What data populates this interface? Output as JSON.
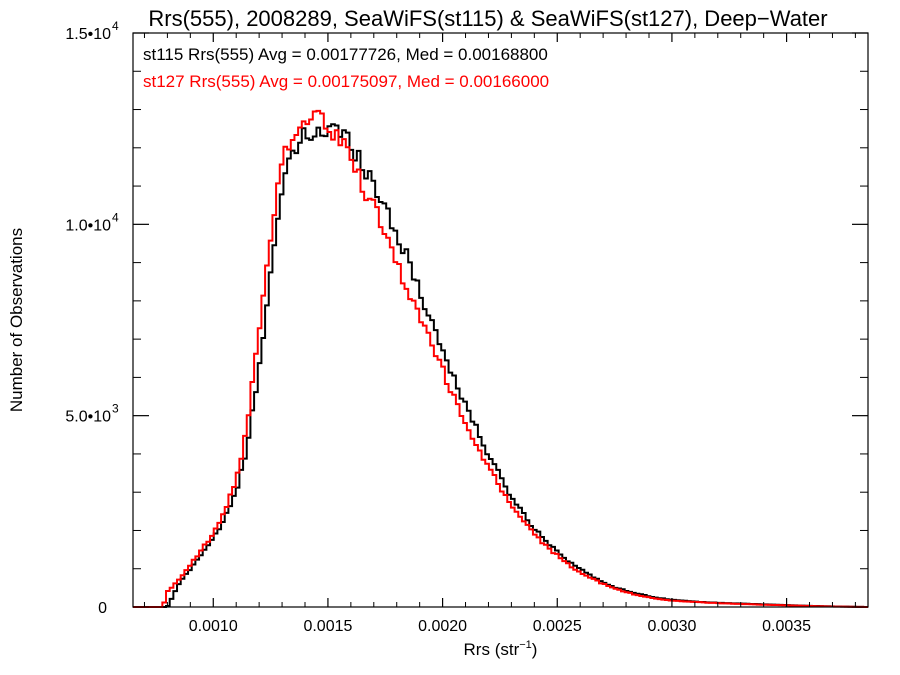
{
  "chart_data": {
    "type": "histogram",
    "title": "Rrs(555), 2008289, SeaWiFS(st115) & SeaWiFS(st127), Deep−Water",
    "xlabel_base": "Rrs (str",
    "xlabel_sup": "−1",
    "xlabel_close": ")",
    "ylabel": "Number of Observations",
    "xlim": [
      0.00065,
      0.003855
    ],
    "ylim": [
      0,
      15000
    ],
    "x_ticks": [
      {
        "value": 0.001,
        "label": "0.0010"
      },
      {
        "value": 0.0015,
        "label": "0.0015"
      },
      {
        "value": 0.002,
        "label": "0.0020"
      },
      {
        "value": 0.0025,
        "label": "0.0025"
      },
      {
        "value": 0.003,
        "label": "0.0030"
      },
      {
        "value": 0.0035,
        "label": "0.0035"
      }
    ],
    "y_ticks": [
      {
        "value": 0,
        "base": "0",
        "sup": ""
      },
      {
        "value": 5000,
        "base": "5.0•10",
        "sup": "3"
      },
      {
        "value": 10000,
        "base": "1.0•10",
        "sup": "4"
      },
      {
        "value": 15000,
        "base": "1.5•10",
        "sup": "4"
      }
    ],
    "bin_width": 1.6e-05,
    "series": [
      {
        "name": "st115",
        "color": "#000000",
        "legend": "st115 Rrs(555) Avg = 0.00177726, Med = 0.00168800",
        "points": [
          [
            0.00065,
            0
          ],
          [
            0.0008,
            0
          ],
          [
            0.00085,
            600
          ],
          [
            0.0009,
            1000
          ],
          [
            0.00095,
            1400
          ],
          [
            0.001,
            1800
          ],
          [
            0.00105,
            2300
          ],
          [
            0.0011,
            3000
          ],
          [
            0.00115,
            4200
          ],
          [
            0.0012,
            6300
          ],
          [
            0.00125,
            8800
          ],
          [
            0.0013,
            10800
          ],
          [
            0.00135,
            11900
          ],
          [
            0.0014,
            12300
          ],
          [
            0.00145,
            12400
          ],
          [
            0.0015,
            12500
          ],
          [
            0.00155,
            12400
          ],
          [
            0.0016,
            12100
          ],
          [
            0.00165,
            11700
          ],
          [
            0.0017,
            11000
          ],
          [
            0.00175,
            10500
          ],
          [
            0.0018,
            9800
          ],
          [
            0.00185,
            9000
          ],
          [
            0.0019,
            8300
          ],
          [
            0.00195,
            7500
          ],
          [
            0.002,
            6700
          ],
          [
            0.00205,
            6000
          ],
          [
            0.0021,
            5300
          ],
          [
            0.00215,
            4600
          ],
          [
            0.0022,
            4000
          ],
          [
            0.00225,
            3400
          ],
          [
            0.0023,
            2900
          ],
          [
            0.00235,
            2450
          ],
          [
            0.0024,
            2050
          ],
          [
            0.00245,
            1750
          ],
          [
            0.0025,
            1450
          ],
          [
            0.00255,
            1200
          ],
          [
            0.0026,
            1000
          ],
          [
            0.00265,
            800
          ],
          [
            0.0027,
            650
          ],
          [
            0.00275,
            520
          ],
          [
            0.0028,
            430
          ],
          [
            0.00285,
            350
          ],
          [
            0.0029,
            280
          ],
          [
            0.00295,
            230
          ],
          [
            0.003,
            190
          ],
          [
            0.0031,
            140
          ],
          [
            0.0032,
            110
          ],
          [
            0.0033,
            90
          ],
          [
            0.0034,
            70
          ],
          [
            0.0035,
            50
          ],
          [
            0.0036,
            30
          ],
          [
            0.0037,
            15
          ],
          [
            0.0038,
            5
          ],
          [
            0.003855,
            0
          ]
        ]
      },
      {
        "name": "st127",
        "color": "#ff0000",
        "legend": "st127 Rrs(555) Avg = 0.00175097, Med = 0.00166000",
        "points": [
          [
            0.00065,
            0
          ],
          [
            0.00078,
            0
          ],
          [
            0.0008,
            400
          ],
          [
            0.00085,
            700
          ],
          [
            0.0009,
            1100
          ],
          [
            0.00095,
            1500
          ],
          [
            0.001,
            1900
          ],
          [
            0.00105,
            2500
          ],
          [
            0.0011,
            3300
          ],
          [
            0.00115,
            4800
          ],
          [
            0.0012,
            7200
          ],
          [
            0.00125,
            9800
          ],
          [
            0.0013,
            11600
          ],
          [
            0.00135,
            12400
          ],
          [
            0.0014,
            12700
          ],
          [
            0.00145,
            12800
          ],
          [
            0.0015,
            12600
          ],
          [
            0.00155,
            12200
          ],
          [
            0.0016,
            11700
          ],
          [
            0.00165,
            11100
          ],
          [
            0.0017,
            10400
          ],
          [
            0.00175,
            9700
          ],
          [
            0.0018,
            9000
          ],
          [
            0.00185,
            8300
          ],
          [
            0.0019,
            7600
          ],
          [
            0.00195,
            6900
          ],
          [
            0.002,
            6200
          ],
          [
            0.00205,
            5500
          ],
          [
            0.0021,
            4800
          ],
          [
            0.00215,
            4200
          ],
          [
            0.0022,
            3700
          ],
          [
            0.00225,
            3100
          ],
          [
            0.0023,
            2700
          ],
          [
            0.00235,
            2250
          ],
          [
            0.0024,
            1900
          ],
          [
            0.00245,
            1600
          ],
          [
            0.0025,
            1350
          ],
          [
            0.00255,
            1100
          ],
          [
            0.0026,
            900
          ],
          [
            0.00265,
            750
          ],
          [
            0.0027,
            600
          ],
          [
            0.00275,
            480
          ],
          [
            0.0028,
            390
          ],
          [
            0.00285,
            310
          ],
          [
            0.0029,
            250
          ],
          [
            0.00295,
            200
          ],
          [
            0.003,
            170
          ],
          [
            0.0031,
            130
          ],
          [
            0.0032,
            100
          ],
          [
            0.0033,
            80
          ],
          [
            0.0034,
            60
          ],
          [
            0.0035,
            45
          ],
          [
            0.0036,
            25
          ],
          [
            0.0037,
            12
          ],
          [
            0.0038,
            4
          ],
          [
            0.003855,
            0
          ]
        ]
      }
    ]
  }
}
